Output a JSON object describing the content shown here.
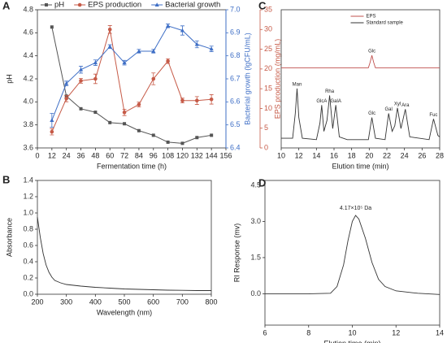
{
  "chart_data": [
    {
      "type": "line",
      "panel": "A",
      "legend": "above",
      "xlabel": "Fermentation time (h)",
      "ylabel": "pH",
      "y2label": "Bacterial growth (lgCFU/mL)",
      "y3label": "EPS production (mg/mL)",
      "x": [
        12,
        24,
        36,
        48,
        60,
        72,
        84,
        96,
        108,
        120,
        132,
        144
      ],
      "xlim": [
        0,
        156
      ],
      "xticks": [
        0,
        12,
        24,
        36,
        48,
        60,
        72,
        84,
        96,
        108,
        120,
        132,
        144,
        156
      ],
      "ylim": [
        3.6,
        4.8
      ],
      "yticks": [
        3.6,
        3.8,
        {
          "value": 4.0,
          "label": "4.0"
        },
        4.2,
        4.4,
        4.6,
        4.8
      ],
      "y2lim": [
        6.4,
        7.0
      ],
      "y2ticks": [
        6.4,
        6.5,
        6.6,
        6.7,
        6.8,
        6.9,
        {
          "value": 7.0,
          "label": "7.0"
        }
      ],
      "y3lim": [
        0,
        35
      ],
      "y3ticks": [
        0,
        5,
        10,
        15,
        20,
        25,
        30,
        35
      ],
      "series": [
        {
          "name": "pH",
          "color": "#555555",
          "marker": "square",
          "axis": "y",
          "values": [
            4.65,
            4.05,
            3.94,
            3.91,
            3.82,
            3.81,
            3.75,
            3.71,
            3.65,
            3.64,
            3.69,
            3.71
          ]
        },
        {
          "name": "EPS production",
          "color": "#c65a47",
          "marker": "circle",
          "axis": "y3",
          "values": [
            4.1,
            12.5,
            17,
            17.5,
            30,
            9,
            11,
            17.5,
            22,
            12,
            12,
            12.3
          ],
          "errors": [
            0.8,
            0.8,
            0.6,
            1.2,
            1.0,
            0.8,
            0.6,
            1.5,
            0.6,
            0.6,
            1.0,
            1.2
          ]
        },
        {
          "name": "Bacterial growth",
          "color": "#3f6fc6",
          "marker": "triangle",
          "axis": "y2",
          "values": [
            6.52,
            6.68,
            6.74,
            6.77,
            6.84,
            6.77,
            6.82,
            6.82,
            6.93,
            6.91,
            6.85,
            6.83
          ],
          "errors": [
            0.03,
            0.01,
            0.015,
            0.012,
            0.008,
            0.01,
            0.008,
            0.008,
            0.008,
            0.02,
            0.015,
            0.012
          ]
        }
      ]
    },
    {
      "type": "line",
      "panel": "B",
      "xlabel": "Wavelength (nm)",
      "ylabel": "Absorbance",
      "xlim": [
        200,
        800
      ],
      "xticks": [
        200,
        300,
        400,
        500,
        600,
        700,
        800
      ],
      "ylim": [
        0,
        1.4
      ],
      "yticks": [
        {
          "value": 0,
          "label": "0.0"
        },
        0.2,
        0.4,
        0.6,
        0.8,
        {
          "value": 1,
          "label": "1.0"
        },
        1.2,
        1.4
      ],
      "x": [
        200,
        210,
        220,
        230,
        240,
        250,
        260,
        280,
        300,
        350,
        400,
        450,
        500,
        550,
        600,
        650,
        700,
        750,
        800
      ],
      "series": [
        {
          "color": "#333333",
          "values": [
            0.95,
            0.7,
            0.5,
            0.36,
            0.27,
            0.21,
            0.17,
            0.14,
            0.12,
            0.1,
            0.085,
            0.075,
            0.065,
            0.06,
            0.055,
            0.05,
            0.048,
            0.045,
            0.045
          ]
        }
      ]
    },
    {
      "type": "line",
      "panel": "C",
      "legend": "upper center",
      "xlabel": "Elution time (min)",
      "xlim": [
        10,
        28
      ],
      "xticks": [
        10,
        12,
        14,
        16,
        18,
        20,
        22,
        24,
        26,
        28
      ],
      "ylim": [
        0,
        100
      ],
      "series": [
        {
          "name": "EPS",
          "color": "#c0504d",
          "x": [
            10,
            19.9,
            20.1,
            20.3,
            20.5,
            20.7,
            28
          ],
          "values": [
            58,
            58,
            62,
            67,
            62,
            58,
            58
          ],
          "peaks": [
            {
              "label": "Glc",
              "x": 20.3
            }
          ]
        },
        {
          "name": "Standard sample",
          "color": "#333333",
          "x": [
            10,
            11.3,
            11.6,
            11.8,
            12.0,
            12.4,
            14.0,
            14.4,
            14.6,
            14.85,
            15.2,
            15.5,
            15.85,
            16.2,
            16.6,
            17.5,
            19.9,
            20.3,
            20.7,
            21.8,
            22.2,
            22.6,
            22.9,
            23.2,
            23.6,
            24.1,
            24.6,
            26.8,
            27.3,
            27.8,
            28
          ],
          "values": [
            7,
            7,
            25,
            43,
            22,
            7,
            6,
            18,
            31,
            12,
            20,
            38,
            14,
            31,
            8,
            6,
            6,
            22,
            7,
            6,
            25,
            12,
            16,
            29,
            14,
            28,
            8,
            6,
            21,
            9,
            8
          ],
          "peaks": [
            {
              "label": "Man",
              "x": 11.8
            },
            {
              "label": "GlcA",
              "x": 14.6
            },
            {
              "label": "Rha",
              "x": 15.5
            },
            {
              "label": "GalA",
              "x": 16.2
            },
            {
              "label": "Glc",
              "x": 20.3
            },
            {
              "label": "Gal",
              "x": 22.2
            },
            {
              "label": "Xyl",
              "x": 23.2
            },
            {
              "label": "Ara",
              "x": 24.1
            },
            {
              "label": "Fuc",
              "x": 27.3
            }
          ]
        }
      ]
    },
    {
      "type": "line",
      "panel": "D",
      "xlabel": "Elution time (min)",
      "ylabel": "RI Response (mv)",
      "xlim": [
        6,
        14
      ],
      "xticks": [
        6,
        8,
        10,
        12,
        14
      ],
      "ylim": [
        -1.3,
        4.7
      ],
      "yticks": [
        {
          "value": 0,
          "label": "0.0"
        },
        1.5,
        {
          "value": 3,
          "label": "3.0"
        },
        4.5
      ],
      "x": [
        6,
        8,
        9,
        9.3,
        9.6,
        9.8,
        10,
        10.15,
        10.3,
        10.6,
        10.9,
        11.2,
        11.5,
        12,
        13,
        14
      ],
      "series": [
        {
          "color": "#333333",
          "values": [
            0,
            0,
            0.02,
            0.3,
            1.2,
            2.2,
            3.0,
            3.25,
            3.1,
            2.3,
            1.3,
            0.6,
            0.3,
            0.12,
            0.02,
            -0.03
          ]
        }
      ],
      "annotations": [
        {
          "text": "4.17×10⁵ Da",
          "x": 10.15,
          "y": 3.55
        }
      ]
    }
  ]
}
